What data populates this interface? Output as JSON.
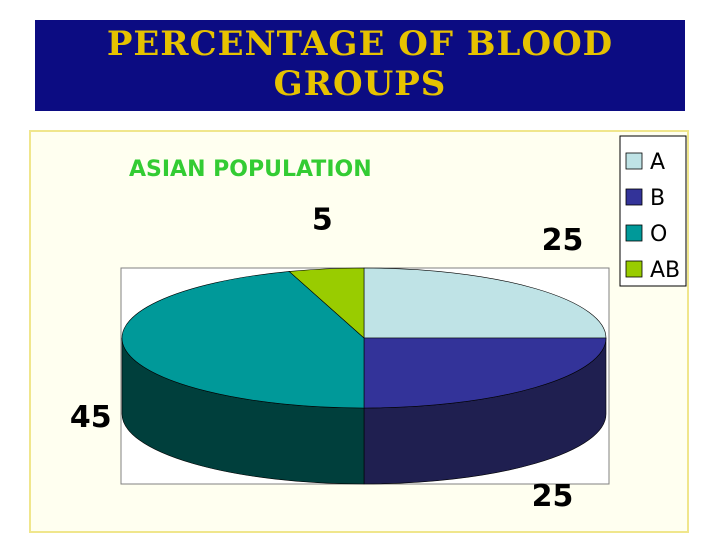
{
  "title": "PERCENTAGE OF BLOOD GROUPS",
  "chart_data": {
    "type": "pie",
    "subtitle": "ASIAN POPULATION",
    "categories": [
      "A",
      "B",
      "O",
      "AB"
    ],
    "values": [
      25,
      25,
      45,
      5
    ],
    "data_labels": [
      "25",
      "25",
      "45",
      "5"
    ],
    "colors": [
      "#bfe3e6",
      "#333399",
      "#009999",
      "#99cc00"
    ],
    "side_colors": [
      "#7fa8ab",
      "#1f1f50",
      "#003f3c",
      "#5c7a00"
    ],
    "legend": [
      "A",
      "B",
      "O",
      "AB"
    ],
    "legend_position": "top-right",
    "style": "3d"
  }
}
